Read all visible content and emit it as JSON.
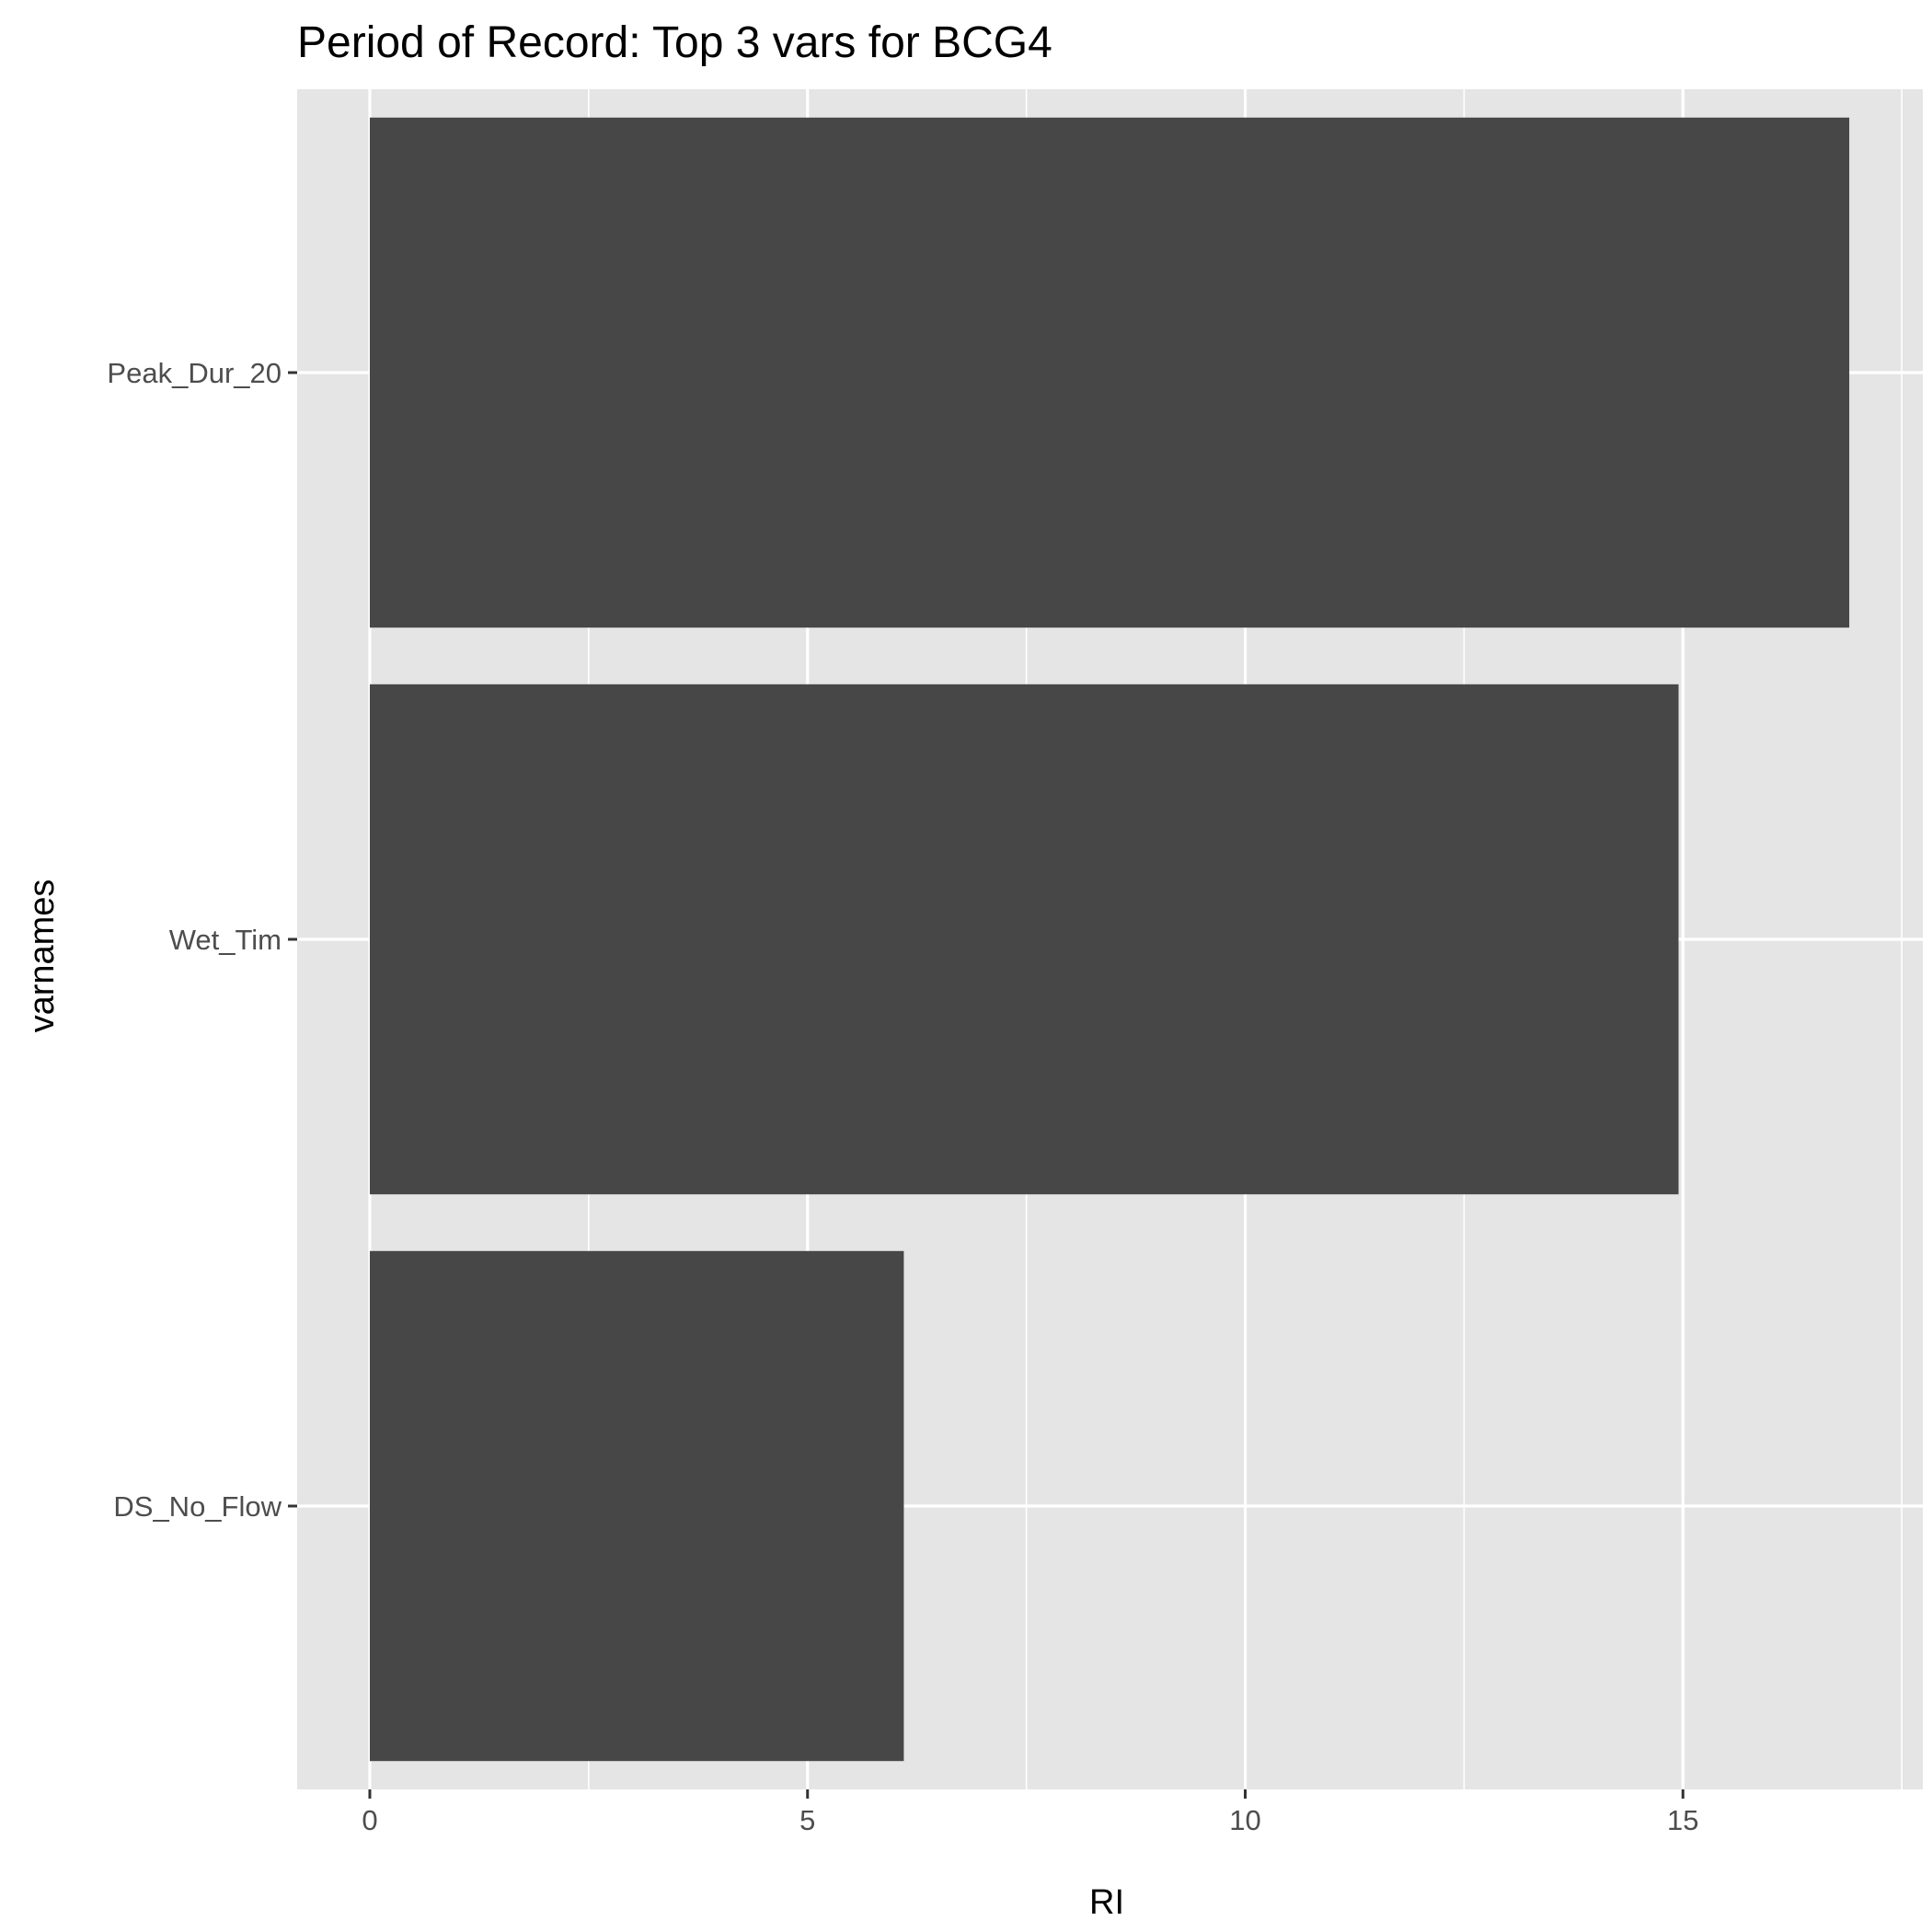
{
  "chart_data": {
    "type": "bar",
    "orientation": "horizontal",
    "title": "Period of Record: Top 3 vars for BCG4",
    "xlabel": "RI",
    "ylabel": "varnames",
    "categories": [
      "DS_No_Flow",
      "Wet_Tim",
      "Peak_Dur_20"
    ],
    "values": [
      6.1,
      14.95,
      16.9
    ],
    "xlim": [
      -0.83,
      17.74
    ],
    "xticks": [
      0,
      5,
      10,
      15
    ],
    "grid": true,
    "legend": "none",
    "colors": {
      "bar": "#474747",
      "panel": "#e5e5e5",
      "grid": "#ffffff",
      "tick": "#333333"
    }
  }
}
